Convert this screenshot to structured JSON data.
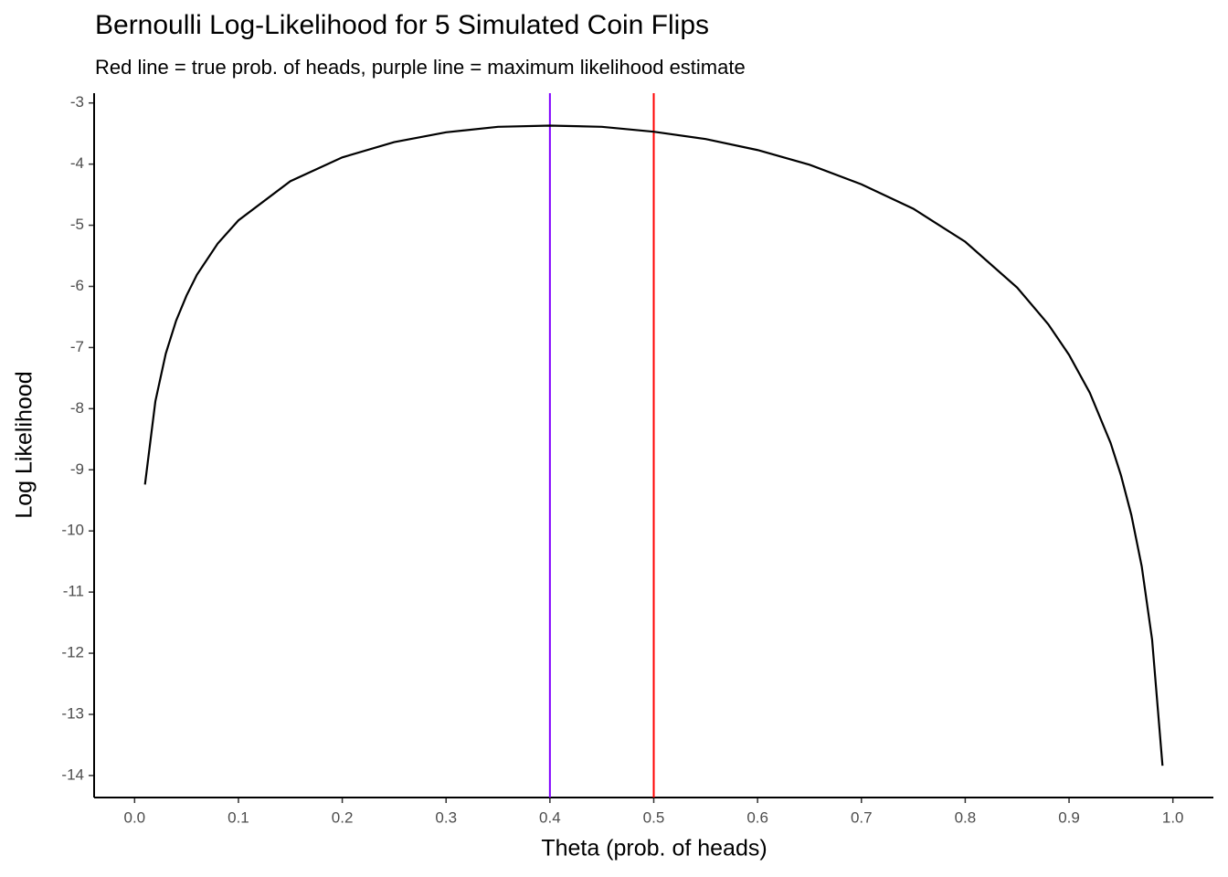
{
  "chart_data": {
    "type": "line",
    "title": "Bernoulli Log-Likelihood for 5 Simulated Coin Flips",
    "subtitle": "Red line = true prob. of heads, purple line = maximum likelihood estimate",
    "x_label": "Theta (prob. of heads)",
    "y_label": "Log Likelihood",
    "x": [
      0.01,
      0.02,
      0.03,
      0.04,
      0.05,
      0.06,
      0.08,
      0.1,
      0.15,
      0.2,
      0.25,
      0.3,
      0.35,
      0.4,
      0.45,
      0.5,
      0.55,
      0.6,
      0.65,
      0.7,
      0.75,
      0.8,
      0.85,
      0.88,
      0.9,
      0.92,
      0.94,
      0.95,
      0.96,
      0.97,
      0.98,
      0.99
    ],
    "series": [
      {
        "color": "#000000",
        "values": [
          -9.24,
          -7.88,
          -7.1,
          -6.56,
          -6.15,
          -5.81,
          -5.3,
          -4.92,
          -4.28,
          -3.89,
          -3.64,
          -3.48,
          -3.39,
          -3.37,
          -3.39,
          -3.47,
          -3.59,
          -3.77,
          -4.01,
          -4.33,
          -4.73,
          -5.27,
          -6.02,
          -6.62,
          -7.12,
          -7.74,
          -8.56,
          -9.09,
          -9.74,
          -10.58,
          -11.78,
          -13.84
        ]
      }
    ],
    "vlines": [
      {
        "x": 0.4,
        "color": "#8000ff"
      },
      {
        "x": 0.5,
        "color": "#ff0000"
      }
    ],
    "xlim": [
      -0.039,
      1.039
    ],
    "ylim": [
      -14.36,
      -2.84
    ],
    "xticks": [
      {
        "value": 0,
        "label": "0.0"
      },
      0.1,
      0.2,
      0.3,
      0.4,
      0.5,
      0.6,
      0.7,
      0.8,
      0.9,
      {
        "value": 1,
        "label": "1.0"
      }
    ],
    "yticks": [
      -3,
      -4,
      -5,
      -6,
      -7,
      -8,
      -9,
      -10,
      -11,
      -12,
      -13,
      -14
    ],
    "grid": false
  }
}
